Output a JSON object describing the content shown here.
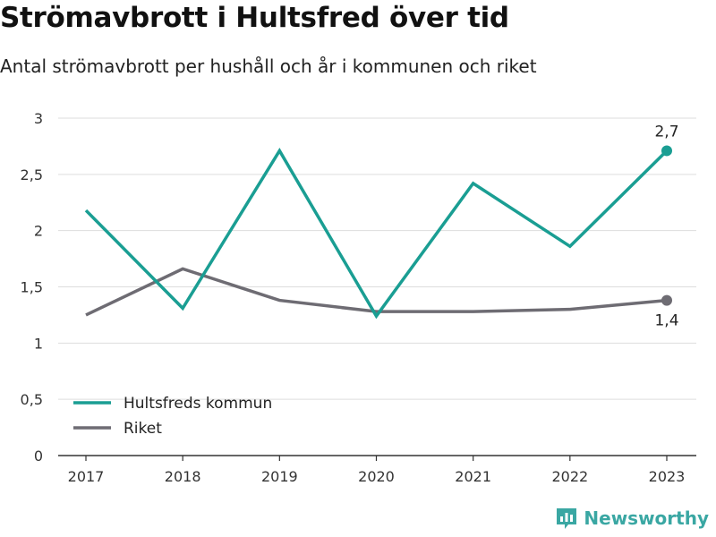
{
  "title": "Strömavbrott i Hultsfred över tid",
  "subtitle": "Antal strömavbrott per hushåll och år i kommunen och riket",
  "brand": "Newsworthy",
  "chart_data": {
    "type": "line",
    "x": [
      "2017",
      "2018",
      "2019",
      "2020",
      "2021",
      "2022",
      "2023"
    ],
    "ylim": [
      0,
      3
    ],
    "yticks": [
      0,
      0.5,
      1,
      1.5,
      2,
      2.5,
      3
    ],
    "ytick_labels": [
      "0",
      "0,5",
      "1",
      "1,5",
      "2",
      "2,5",
      "3"
    ],
    "grid": true,
    "legend_position": "bottom-left",
    "series": [
      {
        "name": "Hultsfreds kommun",
        "color": "#1a9e93",
        "values": [
          2.18,
          1.31,
          2.71,
          1.24,
          2.42,
          1.86,
          2.71
        ],
        "end_label": "2,7"
      },
      {
        "name": "Riket",
        "color": "#6e6c73",
        "values": [
          1.25,
          1.66,
          1.38,
          1.28,
          1.28,
          1.3,
          1.38
        ],
        "end_label": "1,4"
      }
    ]
  }
}
